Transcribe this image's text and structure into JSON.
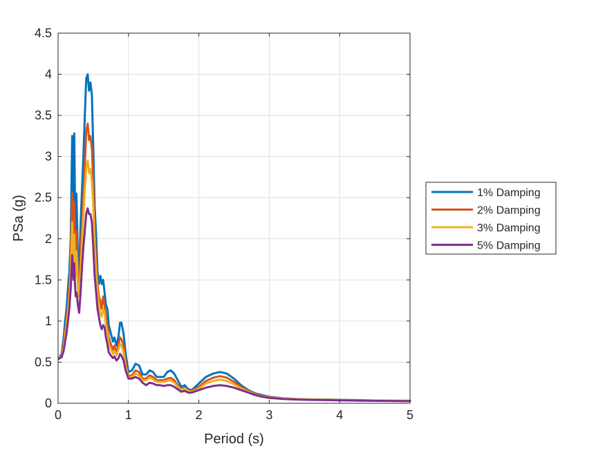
{
  "chart_data": {
    "type": "line",
    "xlabel": "Period (s)",
    "ylabel": "PSa (g)",
    "xlim": [
      0,
      5
    ],
    "ylim": [
      0,
      4.5
    ],
    "xticks": [
      0,
      1,
      2,
      3,
      4,
      5
    ],
    "yticks": [
      0,
      0.5,
      1,
      1.5,
      2,
      2.5,
      3,
      3.5,
      4,
      4.5
    ],
    "xtick_labels": [
      "0",
      "1",
      "2",
      "3",
      "4",
      "5"
    ],
    "ytick_labels": [
      "0",
      "0.5",
      "1",
      "1.5",
      "2",
      "2.5",
      "3",
      "3.5",
      "4",
      "4.5"
    ],
    "grid": true,
    "legend_position": "outside-right",
    "series": [
      {
        "name": "1% Damping",
        "color": "#0072BD",
        "x": [
          0.01,
          0.05,
          0.08,
          0.1,
          0.12,
          0.14,
          0.16,
          0.18,
          0.2,
          0.22,
          0.23,
          0.24,
          0.25,
          0.26,
          0.27,
          0.28,
          0.3,
          0.32,
          0.34,
          0.36,
          0.38,
          0.4,
          0.42,
          0.44,
          0.46,
          0.48,
          0.5,
          0.52,
          0.54,
          0.56,
          0.58,
          0.6,
          0.62,
          0.64,
          0.66,
          0.68,
          0.7,
          0.72,
          0.75,
          0.78,
          0.8,
          0.83,
          0.86,
          0.88,
          0.9,
          0.93,
          0.96,
          1.0,
          1.05,
          1.1,
          1.15,
          1.2,
          1.25,
          1.3,
          1.35,
          1.4,
          1.45,
          1.5,
          1.55,
          1.6,
          1.65,
          1.7,
          1.75,
          1.8,
          1.85,
          1.9,
          2.0,
          2.1,
          2.2,
          2.3,
          2.4,
          2.5,
          2.6,
          2.7,
          2.8,
          2.9,
          3.0,
          3.2,
          3.4,
          3.6,
          3.8,
          4.0,
          4.3,
          4.6,
          5.0
        ],
        "y": [
          0.55,
          0.6,
          0.8,
          1.0,
          1.15,
          1.4,
          1.6,
          2.0,
          3.25,
          2.1,
          3.28,
          2.5,
          2.0,
          2.55,
          2.2,
          1.8,
          1.6,
          2.2,
          2.6,
          3.0,
          3.5,
          3.95,
          4.0,
          3.8,
          3.9,
          3.75,
          3.1,
          2.4,
          2.05,
          1.6,
          1.45,
          1.55,
          1.45,
          1.5,
          1.35,
          1.2,
          1.15,
          0.95,
          0.85,
          0.75,
          0.8,
          0.7,
          0.82,
          0.98,
          0.98,
          0.85,
          0.6,
          0.38,
          0.4,
          0.48,
          0.46,
          0.35,
          0.35,
          0.4,
          0.38,
          0.32,
          0.32,
          0.32,
          0.38,
          0.4,
          0.36,
          0.28,
          0.2,
          0.22,
          0.17,
          0.16,
          0.24,
          0.32,
          0.36,
          0.38,
          0.36,
          0.3,
          0.22,
          0.16,
          0.12,
          0.1,
          0.08,
          0.06,
          0.05,
          0.045,
          0.045,
          0.042,
          0.038,
          0.032,
          0.03
        ]
      },
      {
        "name": "2% Damping",
        "color": "#D95319",
        "x": [
          0.01,
          0.05,
          0.08,
          0.1,
          0.12,
          0.14,
          0.16,
          0.18,
          0.2,
          0.22,
          0.23,
          0.24,
          0.25,
          0.26,
          0.27,
          0.28,
          0.3,
          0.32,
          0.34,
          0.36,
          0.38,
          0.4,
          0.42,
          0.44,
          0.46,
          0.48,
          0.5,
          0.52,
          0.54,
          0.56,
          0.58,
          0.6,
          0.62,
          0.64,
          0.66,
          0.68,
          0.7,
          0.72,
          0.75,
          0.78,
          0.8,
          0.83,
          0.86,
          0.88,
          0.9,
          0.93,
          0.96,
          1.0,
          1.05,
          1.1,
          1.15,
          1.2,
          1.25,
          1.3,
          1.35,
          1.4,
          1.45,
          1.5,
          1.55,
          1.6,
          1.65,
          1.7,
          1.75,
          1.8,
          1.85,
          1.9,
          2.0,
          2.1,
          2.2,
          2.3,
          2.4,
          2.5,
          2.6,
          2.7,
          2.8,
          2.9,
          3.0,
          3.2,
          3.4,
          3.6,
          3.8,
          4.0,
          4.3,
          4.6,
          5.0
        ],
        "y": [
          0.55,
          0.58,
          0.72,
          0.88,
          1.0,
          1.2,
          1.4,
          1.75,
          2.55,
          1.8,
          2.45,
          2.0,
          1.7,
          2.1,
          1.9,
          1.55,
          1.4,
          1.8,
          2.2,
          2.5,
          2.9,
          3.3,
          3.4,
          3.2,
          3.25,
          3.1,
          2.7,
          2.1,
          1.75,
          1.45,
          1.3,
          1.25,
          1.15,
          1.3,
          1.2,
          1.05,
          0.95,
          0.8,
          0.72,
          0.65,
          0.7,
          0.62,
          0.72,
          0.8,
          0.78,
          0.7,
          0.5,
          0.33,
          0.34,
          0.4,
          0.38,
          0.3,
          0.3,
          0.34,
          0.32,
          0.28,
          0.28,
          0.28,
          0.3,
          0.31,
          0.28,
          0.22,
          0.17,
          0.19,
          0.15,
          0.15,
          0.2,
          0.27,
          0.31,
          0.33,
          0.31,
          0.26,
          0.2,
          0.15,
          0.11,
          0.09,
          0.075,
          0.06,
          0.05,
          0.045,
          0.043,
          0.04,
          0.036,
          0.031,
          0.028
        ]
      },
      {
        "name": "3% Damping",
        "color": "#EDB120",
        "x": [
          0.01,
          0.05,
          0.08,
          0.1,
          0.12,
          0.14,
          0.16,
          0.18,
          0.2,
          0.22,
          0.23,
          0.24,
          0.25,
          0.26,
          0.27,
          0.28,
          0.3,
          0.32,
          0.34,
          0.36,
          0.38,
          0.4,
          0.42,
          0.44,
          0.46,
          0.48,
          0.5,
          0.52,
          0.54,
          0.56,
          0.58,
          0.6,
          0.62,
          0.64,
          0.66,
          0.68,
          0.7,
          0.72,
          0.75,
          0.78,
          0.8,
          0.83,
          0.86,
          0.88,
          0.9,
          0.93,
          0.96,
          1.0,
          1.05,
          1.1,
          1.15,
          1.2,
          1.25,
          1.3,
          1.35,
          1.4,
          1.45,
          1.5,
          1.55,
          1.6,
          1.65,
          1.7,
          1.75,
          1.8,
          1.85,
          1.9,
          2.0,
          2.1,
          2.2,
          2.3,
          2.4,
          2.5,
          2.6,
          2.7,
          2.8,
          2.9,
          3.0,
          3.2,
          3.4,
          3.6,
          3.8,
          4.0,
          4.3,
          4.6,
          5.0
        ],
        "y": [
          0.55,
          0.57,
          0.68,
          0.82,
          0.95,
          1.12,
          1.3,
          1.6,
          2.2,
          1.65,
          2.05,
          1.75,
          1.55,
          1.85,
          1.7,
          1.4,
          1.3,
          1.6,
          1.95,
          2.25,
          2.6,
          2.85,
          2.95,
          2.8,
          2.85,
          2.7,
          2.4,
          1.9,
          1.6,
          1.35,
          1.2,
          1.1,
          1.05,
          1.15,
          1.1,
          0.95,
          0.85,
          0.72,
          0.66,
          0.6,
          0.64,
          0.58,
          0.66,
          0.72,
          0.7,
          0.62,
          0.45,
          0.31,
          0.32,
          0.36,
          0.34,
          0.28,
          0.28,
          0.31,
          0.29,
          0.26,
          0.26,
          0.26,
          0.27,
          0.28,
          0.25,
          0.2,
          0.16,
          0.18,
          0.15,
          0.14,
          0.18,
          0.24,
          0.27,
          0.29,
          0.27,
          0.23,
          0.18,
          0.14,
          0.105,
          0.085,
          0.07,
          0.057,
          0.048,
          0.043,
          0.041,
          0.038,
          0.034,
          0.03,
          0.027
        ]
      },
      {
        "name": "5% Damping",
        "color": "#7E2F8E",
        "x": [
          0.01,
          0.05,
          0.08,
          0.1,
          0.12,
          0.14,
          0.16,
          0.18,
          0.2,
          0.22,
          0.23,
          0.24,
          0.25,
          0.26,
          0.27,
          0.28,
          0.3,
          0.32,
          0.34,
          0.36,
          0.38,
          0.4,
          0.42,
          0.44,
          0.46,
          0.48,
          0.5,
          0.52,
          0.54,
          0.56,
          0.58,
          0.6,
          0.62,
          0.64,
          0.66,
          0.68,
          0.7,
          0.72,
          0.75,
          0.78,
          0.8,
          0.83,
          0.86,
          0.88,
          0.9,
          0.93,
          0.96,
          1.0,
          1.05,
          1.1,
          1.15,
          1.2,
          1.25,
          1.3,
          1.35,
          1.4,
          1.45,
          1.5,
          1.55,
          1.6,
          1.65,
          1.7,
          1.75,
          1.8,
          1.85,
          1.9,
          2.0,
          2.1,
          2.2,
          2.3,
          2.4,
          2.5,
          2.6,
          2.7,
          2.8,
          2.9,
          3.0,
          3.2,
          3.4,
          3.6,
          3.8,
          4.0,
          4.3,
          4.6,
          5.0
        ],
        "y": [
          0.54,
          0.56,
          0.64,
          0.75,
          0.85,
          1.0,
          1.15,
          1.4,
          1.8,
          1.5,
          1.7,
          1.45,
          1.3,
          1.35,
          1.3,
          1.2,
          1.1,
          1.35,
          1.65,
          1.9,
          2.1,
          2.3,
          2.37,
          2.3,
          2.3,
          2.2,
          1.9,
          1.55,
          1.35,
          1.15,
          1.05,
          0.95,
          0.9,
          0.95,
          0.92,
          0.8,
          0.72,
          0.62,
          0.58,
          0.55,
          0.57,
          0.52,
          0.55,
          0.6,
          0.58,
          0.52,
          0.4,
          0.3,
          0.3,
          0.32,
          0.3,
          0.25,
          0.22,
          0.25,
          0.24,
          0.22,
          0.22,
          0.21,
          0.22,
          0.22,
          0.2,
          0.17,
          0.14,
          0.15,
          0.13,
          0.13,
          0.16,
          0.19,
          0.21,
          0.22,
          0.21,
          0.19,
          0.16,
          0.13,
          0.1,
          0.08,
          0.065,
          0.053,
          0.045,
          0.041,
          0.039,
          0.036,
          0.032,
          0.029,
          0.026
        ]
      }
    ]
  }
}
